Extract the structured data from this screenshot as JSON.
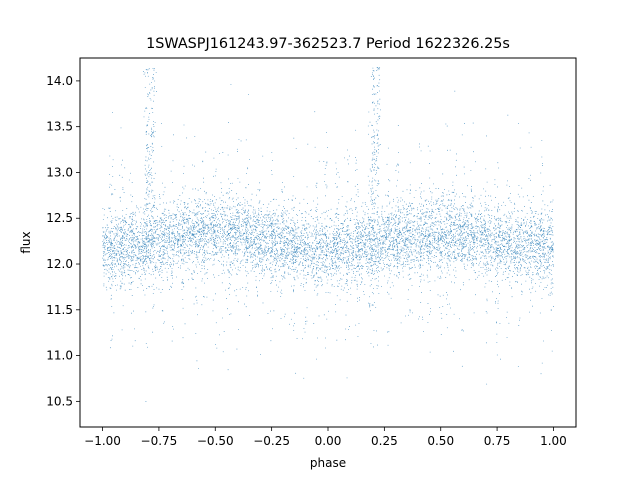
{
  "chart_data": {
    "type": "scatter",
    "title": "1SWASPJ161243.97-362523.7 Period 1622326.25s",
    "xlabel": "phase",
    "ylabel": "flux",
    "xlim": [
      -1.1,
      1.1
    ],
    "ylim": [
      10.22,
      14.25
    ],
    "x_ticks": [
      -1.0,
      -0.75,
      -0.5,
      -0.25,
      0.0,
      0.25,
      0.5,
      0.75,
      1.0
    ],
    "x_tick_labels": [
      "−1.00",
      "−0.75",
      "−0.50",
      "−0.25",
      "0.00",
      "0.25",
      "0.50",
      "0.75",
      "1.00"
    ],
    "y_ticks": [
      10.5,
      11.0,
      11.5,
      12.0,
      12.5,
      13.0,
      13.5,
      14.0
    ],
    "y_tick_labels": [
      "10.5",
      "11.0",
      "11.5",
      "12.0",
      "12.5",
      "13.0",
      "13.5",
      "14.0"
    ],
    "grid": false,
    "legend": "none",
    "marker_color": "#1f77b4",
    "series": [
      {
        "phase_range": [
          -1.0,
          1.0
        ],
        "typical_flux_range": [
          11.9,
          12.6
        ],
        "outlier_flux_range": [
          10.4,
          14.15
        ],
        "approx_count": 9000
      }
    ]
  }
}
